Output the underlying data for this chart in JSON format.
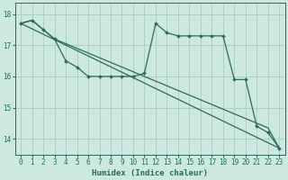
{
  "xlabel": "Humidex (Indice chaleur)",
  "background_color": "#cce8e0",
  "grid_color": "#aaccbf",
  "line_color": "#2a6b5a",
  "xlim": [
    -0.5,
    23.5
  ],
  "ylim": [
    13.5,
    18.35
  ],
  "yticks": [
    14,
    15,
    16,
    17,
    18
  ],
  "xticks": [
    0,
    1,
    2,
    3,
    4,
    5,
    6,
    7,
    8,
    9,
    10,
    11,
    12,
    13,
    14,
    15,
    16,
    17,
    18,
    19,
    20,
    21,
    22,
    23
  ],
  "line1_x": [
    0,
    1,
    2,
    3,
    4,
    5,
    6,
    7,
    8,
    9,
    10,
    11,
    12,
    13,
    14,
    15,
    16,
    17,
    18,
    19,
    20,
    21,
    22,
    23
  ],
  "line1_y": [
    17.7,
    17.8,
    17.5,
    17.2,
    16.5,
    16.3,
    16.0,
    16.0,
    16.0,
    16.0,
    16.0,
    16.1,
    17.7,
    17.4,
    17.3,
    17.3,
    17.3,
    17.3,
    17.3,
    15.9,
    15.9,
    14.4,
    14.2,
    13.7
  ],
  "line2_x": [
    0,
    23
  ],
  "line2_y": [
    17.7,
    13.7
  ],
  "line3_x": [
    0,
    1,
    2,
    3,
    4,
    5,
    6,
    7,
    8,
    9,
    10,
    11,
    12,
    13,
    14,
    15,
    16,
    17,
    18,
    19,
    20,
    21,
    22,
    23
  ],
  "line3_y": [
    17.7,
    17.8,
    17.5,
    17.2,
    17.05,
    16.9,
    16.75,
    16.6,
    16.45,
    16.3,
    16.15,
    16.0,
    15.85,
    15.7,
    15.55,
    15.4,
    15.25,
    15.1,
    14.95,
    14.8,
    14.65,
    14.5,
    14.35,
    13.7
  ]
}
